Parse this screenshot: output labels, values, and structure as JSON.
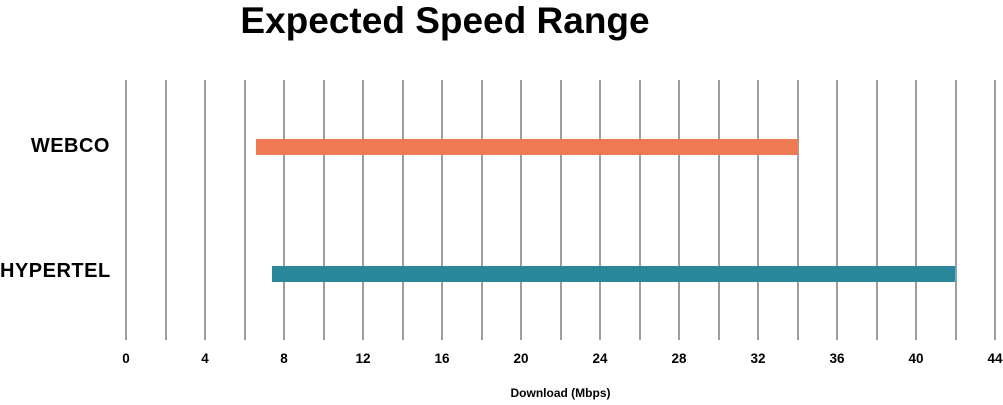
{
  "title": "Expected Speed Range",
  "chart_data": {
    "type": "bar",
    "orientation": "horizontal",
    "variant": "range",
    "title": "Expected Speed Range",
    "xlabel": "Download (Mbps)",
    "ylabel": "",
    "xlim": [
      0,
      44
    ],
    "grid": true,
    "grid_step": 2,
    "grid_color": "#A09C97",
    "legend": "none",
    "categories": [
      "WEBCO",
      "HYPERTEL"
    ],
    "series": [
      {
        "name": "WEBCO",
        "range": [
          6.6,
          34
        ],
        "color": "#EF7A52"
      },
      {
        "name": "HYPERTEL",
        "range": [
          7.4,
          42
        ],
        "color": "#2A879B"
      }
    ],
    "x_tick_values": [
      0,
      4,
      8,
      12,
      16,
      20,
      24,
      28,
      32,
      36,
      40,
      44
    ],
    "x_tick_labels": [
      "0",
      "4",
      "8",
      "12",
      "16",
      "20",
      "24",
      "28",
      "32",
      "36",
      "40",
      "44"
    ]
  },
  "colors": {
    "background": "#FFFFFF",
    "text": "#000000",
    "gridline": "#A09C97",
    "webco_bar": "#EF7A52",
    "hypertel_bar": "#2A879B"
  }
}
